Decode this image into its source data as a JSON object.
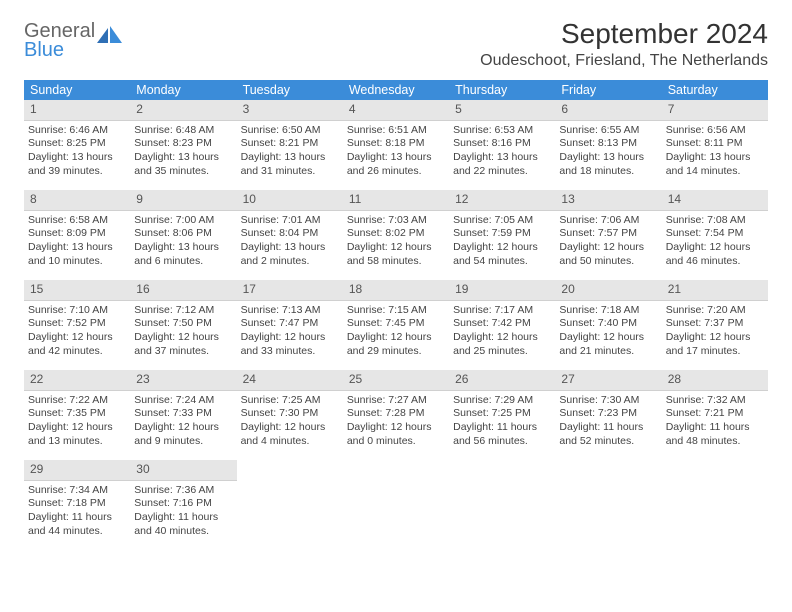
{
  "logo": {
    "word1": "General",
    "word2": "Blue"
  },
  "title": "September 2024",
  "location": "Oudeschoot, Friesland, The Netherlands",
  "colors": {
    "headerBg": "#3b8cd9",
    "headerFg": "#ffffff",
    "dayBarBg": "#e6e6e6",
    "textColor": "#444444",
    "logoGray": "#666666",
    "logoBlue": "#3b8cd9",
    "pageBg": "#ffffff"
  },
  "typography": {
    "titleFontSize": 28,
    "locationFontSize": 16,
    "dayHeaderFontSize": 12.5,
    "cellFontSize": 10.5
  },
  "dayHeaders": [
    "Sunday",
    "Monday",
    "Tuesday",
    "Wednesday",
    "Thursday",
    "Friday",
    "Saturday"
  ],
  "days": [
    {
      "n": "1",
      "sunrise": "Sunrise: 6:46 AM",
      "sunset": "Sunset: 8:25 PM",
      "daylight": "Daylight: 13 hours and 39 minutes."
    },
    {
      "n": "2",
      "sunrise": "Sunrise: 6:48 AM",
      "sunset": "Sunset: 8:23 PM",
      "daylight": "Daylight: 13 hours and 35 minutes."
    },
    {
      "n": "3",
      "sunrise": "Sunrise: 6:50 AM",
      "sunset": "Sunset: 8:21 PM",
      "daylight": "Daylight: 13 hours and 31 minutes."
    },
    {
      "n": "4",
      "sunrise": "Sunrise: 6:51 AM",
      "sunset": "Sunset: 8:18 PM",
      "daylight": "Daylight: 13 hours and 26 minutes."
    },
    {
      "n": "5",
      "sunrise": "Sunrise: 6:53 AM",
      "sunset": "Sunset: 8:16 PM",
      "daylight": "Daylight: 13 hours and 22 minutes."
    },
    {
      "n": "6",
      "sunrise": "Sunrise: 6:55 AM",
      "sunset": "Sunset: 8:13 PM",
      "daylight": "Daylight: 13 hours and 18 minutes."
    },
    {
      "n": "7",
      "sunrise": "Sunrise: 6:56 AM",
      "sunset": "Sunset: 8:11 PM",
      "daylight": "Daylight: 13 hours and 14 minutes."
    },
    {
      "n": "8",
      "sunrise": "Sunrise: 6:58 AM",
      "sunset": "Sunset: 8:09 PM",
      "daylight": "Daylight: 13 hours and 10 minutes."
    },
    {
      "n": "9",
      "sunrise": "Sunrise: 7:00 AM",
      "sunset": "Sunset: 8:06 PM",
      "daylight": "Daylight: 13 hours and 6 minutes."
    },
    {
      "n": "10",
      "sunrise": "Sunrise: 7:01 AM",
      "sunset": "Sunset: 8:04 PM",
      "daylight": "Daylight: 13 hours and 2 minutes."
    },
    {
      "n": "11",
      "sunrise": "Sunrise: 7:03 AM",
      "sunset": "Sunset: 8:02 PM",
      "daylight": "Daylight: 12 hours and 58 minutes."
    },
    {
      "n": "12",
      "sunrise": "Sunrise: 7:05 AM",
      "sunset": "Sunset: 7:59 PM",
      "daylight": "Daylight: 12 hours and 54 minutes."
    },
    {
      "n": "13",
      "sunrise": "Sunrise: 7:06 AM",
      "sunset": "Sunset: 7:57 PM",
      "daylight": "Daylight: 12 hours and 50 minutes."
    },
    {
      "n": "14",
      "sunrise": "Sunrise: 7:08 AM",
      "sunset": "Sunset: 7:54 PM",
      "daylight": "Daylight: 12 hours and 46 minutes."
    },
    {
      "n": "15",
      "sunrise": "Sunrise: 7:10 AM",
      "sunset": "Sunset: 7:52 PM",
      "daylight": "Daylight: 12 hours and 42 minutes."
    },
    {
      "n": "16",
      "sunrise": "Sunrise: 7:12 AM",
      "sunset": "Sunset: 7:50 PM",
      "daylight": "Daylight: 12 hours and 37 minutes."
    },
    {
      "n": "17",
      "sunrise": "Sunrise: 7:13 AM",
      "sunset": "Sunset: 7:47 PM",
      "daylight": "Daylight: 12 hours and 33 minutes."
    },
    {
      "n": "18",
      "sunrise": "Sunrise: 7:15 AM",
      "sunset": "Sunset: 7:45 PM",
      "daylight": "Daylight: 12 hours and 29 minutes."
    },
    {
      "n": "19",
      "sunrise": "Sunrise: 7:17 AM",
      "sunset": "Sunset: 7:42 PM",
      "daylight": "Daylight: 12 hours and 25 minutes."
    },
    {
      "n": "20",
      "sunrise": "Sunrise: 7:18 AM",
      "sunset": "Sunset: 7:40 PM",
      "daylight": "Daylight: 12 hours and 21 minutes."
    },
    {
      "n": "21",
      "sunrise": "Sunrise: 7:20 AM",
      "sunset": "Sunset: 7:37 PM",
      "daylight": "Daylight: 12 hours and 17 minutes."
    },
    {
      "n": "22",
      "sunrise": "Sunrise: 7:22 AM",
      "sunset": "Sunset: 7:35 PM",
      "daylight": "Daylight: 12 hours and 13 minutes."
    },
    {
      "n": "23",
      "sunrise": "Sunrise: 7:24 AM",
      "sunset": "Sunset: 7:33 PM",
      "daylight": "Daylight: 12 hours and 9 minutes."
    },
    {
      "n": "24",
      "sunrise": "Sunrise: 7:25 AM",
      "sunset": "Sunset: 7:30 PM",
      "daylight": "Daylight: 12 hours and 4 minutes."
    },
    {
      "n": "25",
      "sunrise": "Sunrise: 7:27 AM",
      "sunset": "Sunset: 7:28 PM",
      "daylight": "Daylight: 12 hours and 0 minutes."
    },
    {
      "n": "26",
      "sunrise": "Sunrise: 7:29 AM",
      "sunset": "Sunset: 7:25 PM",
      "daylight": "Daylight: 11 hours and 56 minutes."
    },
    {
      "n": "27",
      "sunrise": "Sunrise: 7:30 AM",
      "sunset": "Sunset: 7:23 PM",
      "daylight": "Daylight: 11 hours and 52 minutes."
    },
    {
      "n": "28",
      "sunrise": "Sunrise: 7:32 AM",
      "sunset": "Sunset: 7:21 PM",
      "daylight": "Daylight: 11 hours and 48 minutes."
    },
    {
      "n": "29",
      "sunrise": "Sunrise: 7:34 AM",
      "sunset": "Sunset: 7:18 PM",
      "daylight": "Daylight: 11 hours and 44 minutes."
    },
    {
      "n": "30",
      "sunrise": "Sunrise: 7:36 AM",
      "sunset": "Sunset: 7:16 PM",
      "daylight": "Daylight: 11 hours and 40 minutes."
    }
  ]
}
